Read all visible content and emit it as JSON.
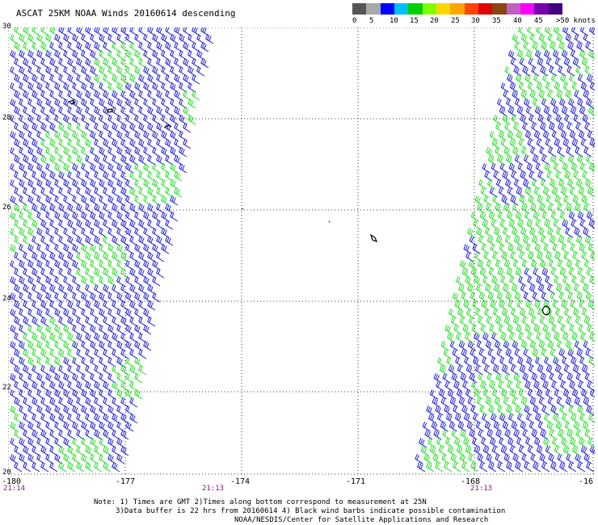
{
  "title": "ASCAT 25KM NOAA Winds 20160614 descending",
  "legend": {
    "colors": [
      "#555555",
      "#a9a9a9",
      "#0000ff",
      "#00bfff",
      "#00d000",
      "#80ff00",
      "#ffd700",
      "#ffa500",
      "#ff4500",
      "#e00000",
      "#8b4513",
      "#c060c0",
      "#ff00ff",
      "#7700aa",
      "#400080"
    ],
    "labels": [
      "0",
      "5",
      "10",
      "15",
      "20",
      "25",
      "30",
      "35",
      "40",
      "45",
      ">50 knots"
    ]
  },
  "map": {
    "lon_range": [
      -180,
      -165.5
    ],
    "lat_range": [
      20,
      30
    ],
    "lat_ticks": [
      "30",
      "28",
      "26",
      "24",
      "22",
      "20"
    ],
    "lon_ticks": [
      "-180",
      "-177",
      "-174",
      "-171",
      "-168",
      "-16"
    ],
    "swath_colors": {
      "blue": "#1a1ad8",
      "green": "#22dd22",
      "black": "#000000"
    },
    "gridlines": "dotted"
  },
  "times": [
    "21:14",
    "21:13",
    "21:13"
  ],
  "notes": {
    "line1": "Note: 1) Times are GMT 2)Times along bottom correspond to measurement at 25N",
    "line2": "3)Data buffer is 22 hrs from 20160614 4) Black wind barbs indicate possible contamination",
    "line3": "NOAA/NESDIS/Center for Satellite Applications and Research"
  }
}
